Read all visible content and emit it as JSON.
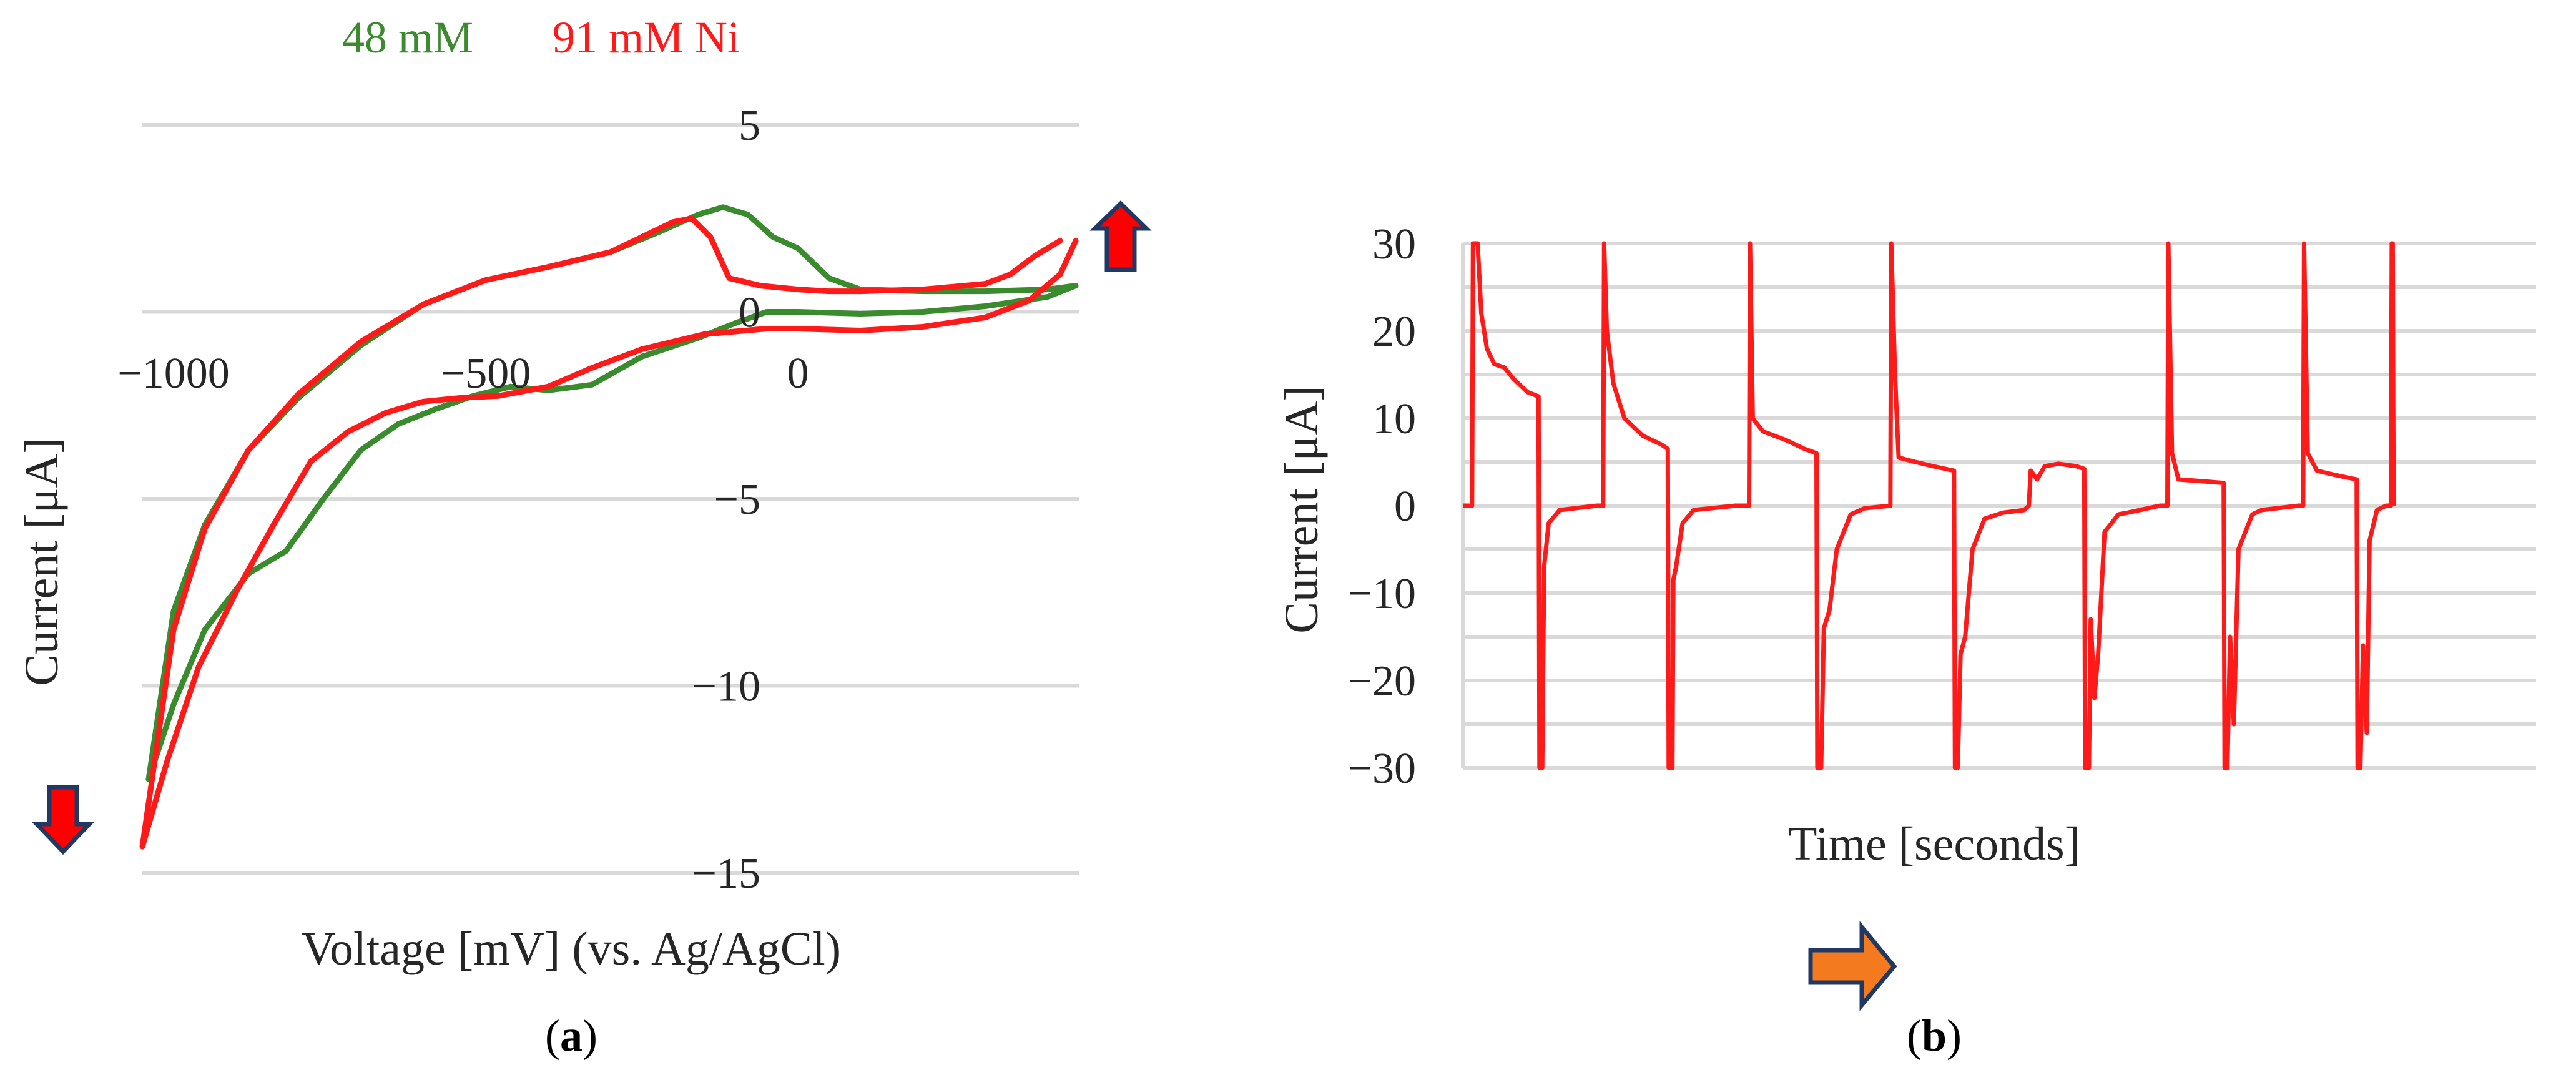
{
  "chart_data": [
    {
      "panel": "a",
      "type": "line",
      "caption": "a",
      "xlabel": "Voltage [mV] (vs. Ag/AgCl)",
      "ylabel": "Current [μA]",
      "xlim": [
        -1050,
        450
      ],
      "ylim": [
        -15,
        5
      ],
      "xticks": [
        -1000,
        -500,
        0
      ],
      "xtick_labels": [
        "−1000",
        "−500",
        "0"
      ],
      "yticks": [
        5,
        0,
        -5,
        -10,
        -15
      ],
      "ytick_labels": [
        "5",
        "0",
        "−5",
        "−10",
        "−15"
      ],
      "grid": true,
      "legend": [
        {
          "label": "48 mM",
          "color": "#3a8a2e"
        },
        {
          "label": "91 mM Ni",
          "color": "#ff1a1a"
        }
      ],
      "markers": [
        {
          "name": "arrow-up",
          "direction": "up",
          "location": "upper-right",
          "color": "#ff0000"
        },
        {
          "name": "arrow-down",
          "direction": "down",
          "location": "lower-left",
          "color": "#ff0000"
        }
      ],
      "series": [
        {
          "name": "48 mM",
          "color": "#3a8a2e",
          "points": [
            [
              400,
              0.6
            ],
            [
              300,
              0.55
            ],
            [
              200,
              0.55
            ],
            [
              100,
              0.6
            ],
            [
              50,
              0.9
            ],
            [
              0,
              1.7
            ],
            [
              -40,
              2.0
            ],
            [
              -80,
              2.6
            ],
            [
              -120,
              2.8
            ],
            [
              -160,
              2.6
            ],
            [
              -220,
              2.15
            ],
            [
              -300,
              1.6
            ],
            [
              -400,
              1.2
            ],
            [
              -500,
              0.85
            ],
            [
              -600,
              0.2
            ],
            [
              -700,
              -0.9
            ],
            [
              -800,
              -2.3
            ],
            [
              -880,
              -3.7
            ],
            [
              -950,
              -5.7
            ],
            [
              -1000,
              -8.0
            ],
            [
              -1040,
              -12.5
            ],
            [
              -1000,
              -10.5
            ],
            [
              -950,
              -8.5
            ],
            [
              -880,
              -7.0
            ],
            [
              -820,
              -6.4
            ],
            [
              -760,
              -5.0
            ],
            [
              -700,
              -3.7
            ],
            [
              -640,
              -3.0
            ],
            [
              -580,
              -2.6
            ],
            [
              -520,
              -2.25
            ],
            [
              -460,
              -2.0
            ],
            [
              -400,
              -2.1
            ],
            [
              -330,
              -1.95
            ],
            [
              -250,
              -1.2
            ],
            [
              -160,
              -0.7
            ],
            [
              -100,
              -0.3
            ],
            [
              -50,
              0.0
            ],
            [
              0,
              0.0
            ],
            [
              100,
              -0.05
            ],
            [
              200,
              0.0
            ],
            [
              300,
              0.15
            ],
            [
              400,
              0.4
            ],
            [
              445,
              0.7
            ],
            [
              400,
              0.6
            ]
          ]
        },
        {
          "name": "91 mM Ni",
          "color": "#ff1a1a",
          "points": [
            [
              420,
              1.9
            ],
            [
              380,
              1.5
            ],
            [
              340,
              1.0
            ],
            [
              300,
              0.75
            ],
            [
              200,
              0.6
            ],
            [
              100,
              0.55
            ],
            [
              50,
              0.55
            ],
            [
              0,
              0.6
            ],
            [
              -60,
              0.7
            ],
            [
              -110,
              0.9
            ],
            [
              -140,
              2.0
            ],
            [
              -170,
              2.5
            ],
            [
              -200,
              2.4
            ],
            [
              -250,
              2.0
            ],
            [
              -300,
              1.6
            ],
            [
              -400,
              1.2
            ],
            [
              -500,
              0.85
            ],
            [
              -600,
              0.2
            ],
            [
              -700,
              -0.8
            ],
            [
              -800,
              -2.2
            ],
            [
              -880,
              -3.7
            ],
            [
              -950,
              -5.8
            ],
            [
              -1000,
              -8.5
            ],
            [
              -1050,
              -14.3
            ],
            [
              -1010,
              -12.0
            ],
            [
              -960,
              -9.5
            ],
            [
              -900,
              -7.5
            ],
            [
              -840,
              -5.7
            ],
            [
              -780,
              -4.0
            ],
            [
              -720,
              -3.2
            ],
            [
              -660,
              -2.7
            ],
            [
              -600,
              -2.4
            ],
            [
              -540,
              -2.3
            ],
            [
              -480,
              -2.25
            ],
            [
              -400,
              -2.0
            ],
            [
              -330,
              -1.5
            ],
            [
              -250,
              -1.0
            ],
            [
              -150,
              -0.6
            ],
            [
              -50,
              -0.45
            ],
            [
              0,
              -0.45
            ],
            [
              100,
              -0.5
            ],
            [
              200,
              -0.4
            ],
            [
              300,
              -0.15
            ],
            [
              370,
              0.3
            ],
            [
              420,
              1.0
            ],
            [
              445,
              1.9
            ]
          ]
        }
      ]
    },
    {
      "panel": "b",
      "type": "line",
      "caption": "b",
      "xlabel": "Time [seconds]",
      "ylabel": "Current [μA]",
      "xlim": [
        0,
        100
      ],
      "ylim": [
        -30,
        30
      ],
      "yticks": [
        30,
        20,
        10,
        0,
        -10,
        -20,
        -30
      ],
      "ytick_labels": [
        "30",
        "20",
        "10",
        "0",
        "−10",
        "−20",
        "−30"
      ],
      "grid": true,
      "markers": [
        {
          "name": "arrow-right",
          "direction": "right",
          "location": "below-axis",
          "color": "#f47a20"
        }
      ],
      "series": [
        {
          "name": "current",
          "color": "#ff1a1a",
          "points": [
            [
              0,
              0
            ],
            [
              1.0,
              0
            ],
            [
              1.1,
              30
            ],
            [
              1.6,
              30
            ],
            [
              2.0,
              22
            ],
            [
              2.6,
              18
            ],
            [
              3.4,
              16.2
            ],
            [
              4.5,
              15.8
            ],
            [
              5.5,
              14.5
            ],
            [
              7.0,
              13
            ],
            [
              8.2,
              12.5
            ],
            [
              8.3,
              -30
            ],
            [
              8.6,
              -30
            ],
            [
              8.8,
              -7
            ],
            [
              9.3,
              -2
            ],
            [
              10.5,
              -0.5
            ],
            [
              14.5,
              0
            ],
            [
              15.2,
              0
            ],
            [
              15.3,
              30
            ],
            [
              15.6,
              20
            ],
            [
              16.3,
              14
            ],
            [
              17.5,
              10
            ],
            [
              19.5,
              8
            ],
            [
              21.5,
              7
            ],
            [
              22.2,
              6.5
            ],
            [
              22.3,
              -30
            ],
            [
              22.7,
              -30
            ],
            [
              22.8,
              -8.5
            ],
            [
              23.1,
              -7
            ],
            [
              23.8,
              -2
            ],
            [
              25.0,
              -0.5
            ],
            [
              29.5,
              0
            ],
            [
              31.0,
              0
            ],
            [
              31.1,
              30
            ],
            [
              31.4,
              10
            ],
            [
              32.5,
              8.5
            ],
            [
              35,
              7.5
            ],
            [
              37,
              6.5
            ],
            [
              38.3,
              6
            ],
            [
              38.4,
              -30
            ],
            [
              38.8,
              -30
            ],
            [
              39.1,
              -14
            ],
            [
              39.7,
              -12
            ],
            [
              40.5,
              -5
            ],
            [
              42,
              -1
            ],
            [
              43.5,
              -0.3
            ],
            [
              46.3,
              0
            ],
            [
              46.4,
              30
            ],
            [
              46.8,
              15
            ],
            [
              47.2,
              5.5
            ],
            [
              49,
              5
            ],
            [
              51,
              4.5
            ],
            [
              53.2,
              4
            ],
            [
              53.3,
              -30
            ],
            [
              53.6,
              -30
            ],
            [
              53.9,
              -17
            ],
            [
              54.4,
              -15
            ],
            [
              55.2,
              -5
            ],
            [
              56.5,
              -1.5
            ],
            [
              58.5,
              -0.8
            ],
            [
              60.8,
              -0.5
            ],
            [
              61.3,
              0
            ],
            [
              61.5,
              4
            ],
            [
              62.2,
              3
            ],
            [
              63,
              4.5
            ],
            [
              64.5,
              4.8
            ],
            [
              66.5,
              4.5
            ],
            [
              67.3,
              4.2
            ],
            [
              67.4,
              -30
            ],
            [
              67.8,
              -30
            ],
            [
              68.0,
              -13
            ],
            [
              68.4,
              -22
            ],
            [
              68.8,
              -17
            ],
            [
              69.5,
              -3
            ],
            [
              71,
              -1
            ],
            [
              72,
              -0.8
            ],
            [
              75.5,
              0
            ],
            [
              76.3,
              0
            ],
            [
              76.4,
              30
            ],
            [
              76.8,
              6
            ],
            [
              77.5,
              3
            ],
            [
              80,
              2.8
            ],
            [
              82.4,
              2.6
            ],
            [
              82.5,
              -30
            ],
            [
              82.8,
              -30
            ],
            [
              83.1,
              -15
            ],
            [
              83.5,
              -25
            ],
            [
              84,
              -5
            ],
            [
              85.5,
              -1
            ],
            [
              86.5,
              -0.5
            ],
            [
              90.5,
              0
            ],
            [
              91.0,
              0
            ],
            [
              91.1,
              30
            ],
            [
              91.5,
              6
            ],
            [
              92.5,
              4
            ],
            [
              94.5,
              3.5
            ],
            [
              96.8,
              3.0
            ],
            [
              96.9,
              -30
            ],
            [
              97.2,
              -30
            ],
            [
              97.5,
              -16
            ],
            [
              97.9,
              -26
            ],
            [
              98.2,
              -4
            ],
            [
              99,
              -0.5
            ],
            [
              100,
              0
            ],
            [
              100.5,
              0
            ],
            [
              100.6,
              30
            ],
            [
              100.7,
              30
            ],
            [
              100.8,
              0
            ]
          ]
        }
      ]
    }
  ]
}
